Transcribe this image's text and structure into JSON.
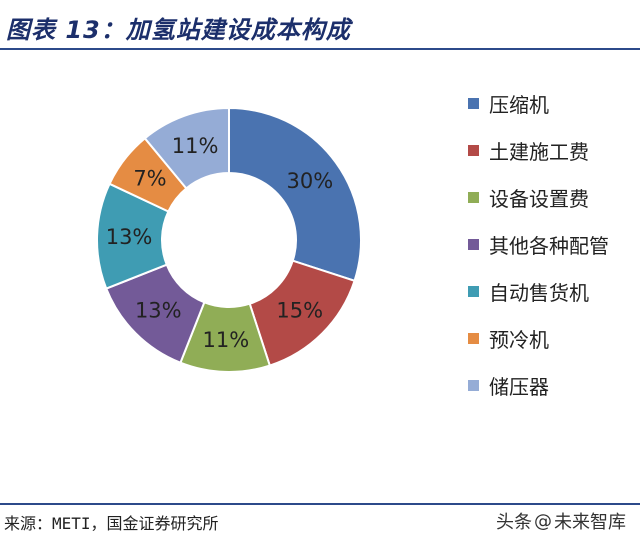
{
  "title": "图表 13：加氢站建设成本构成",
  "chart_data": {
    "type": "pie",
    "donut": true,
    "categories": [
      "压缩机",
      "土建施工费",
      "设备设置费",
      "其他各种配管",
      "自动售货机",
      "预冷机",
      "储压器"
    ],
    "values": [
      30,
      15,
      11,
      13,
      13,
      7,
      11
    ],
    "labels": [
      "30%",
      "15%",
      "11%",
      "13%",
      "13%",
      "7%",
      "11%"
    ],
    "colors": [
      "#4a73b0",
      "#b34a47",
      "#90ad56",
      "#735a98",
      "#3f9cb3",
      "#e58c43",
      "#95acd6"
    ],
    "legend_position": "right"
  },
  "source": "来源：METI，国金证券研究所",
  "watermark": {
    "brand": "头条",
    "at": "@",
    "account": "未来智库"
  }
}
